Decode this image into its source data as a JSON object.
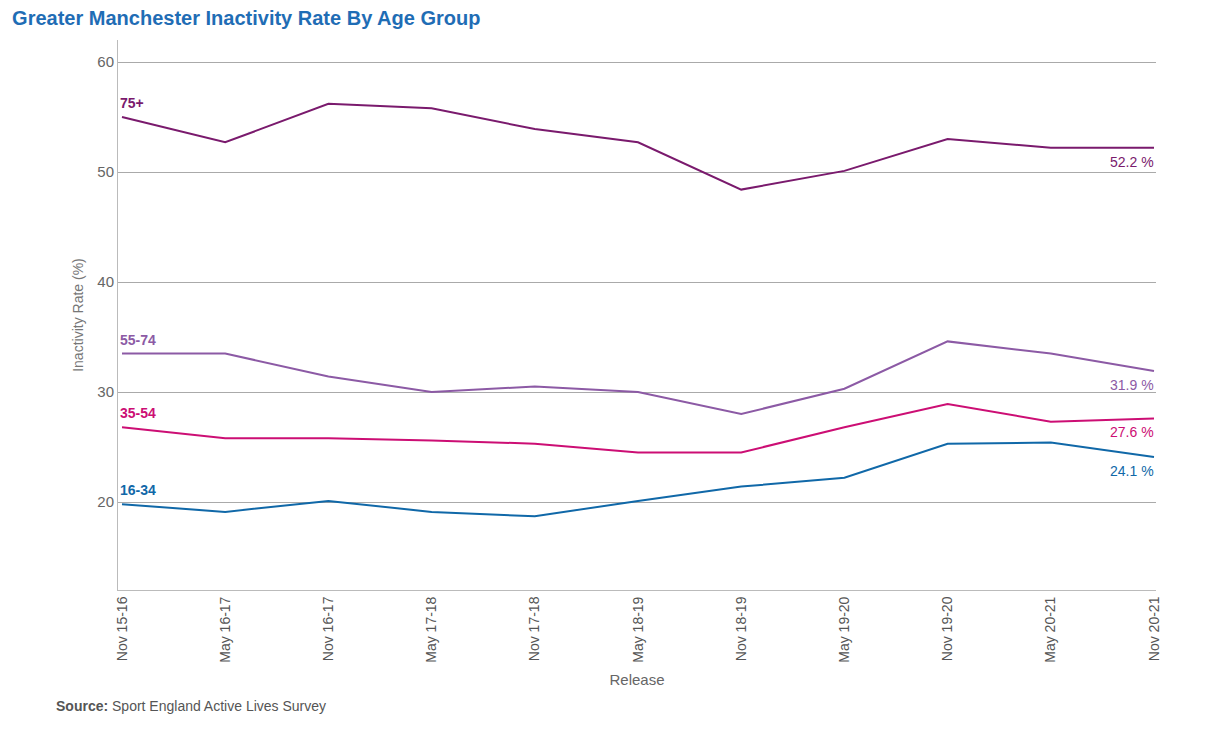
{
  "chart_data": {
    "type": "line",
    "title": "Greater Manchester Inactivity Rate By Age Group",
    "x_label": "Release",
    "y_label": "Inactivity Rate (%)",
    "source_label": "Source:",
    "source": "Sport England Active Lives Survey",
    "categories": [
      "Nov 15-16",
      "May 16-17",
      "Nov 16-17",
      "May 17-18",
      "Nov 17-18",
      "May 18-19",
      "Nov 18-19",
      "May 19-20",
      "Nov 19-20",
      "May 20-21",
      "Nov 20-21"
    ],
    "series": [
      {
        "name": "75+",
        "color": "#7a1a6d",
        "values": [
          55.0,
          52.7,
          56.2,
          55.8,
          53.9,
          52.7,
          48.4,
          50.1,
          53.0,
          52.2,
          52.2
        ],
        "value_labels": [
          null,
          null,
          null,
          null,
          null,
          null,
          null,
          null,
          null,
          null,
          "52.2 %"
        ]
      },
      {
        "name": "55-74",
        "color": "#8c5aa5",
        "values": [
          33.5,
          33.5,
          31.4,
          30.0,
          30.5,
          30.0,
          28.0,
          30.3,
          34.6,
          33.5,
          31.9
        ],
        "value_labels": [
          null,
          null,
          null,
          null,
          null,
          null,
          null,
          null,
          null,
          null,
          "31.9 %"
        ]
      },
      {
        "name": "35-54",
        "color": "#cc0e74",
        "values": [
          26.8,
          25.8,
          25.8,
          25.6,
          25.3,
          24.5,
          24.5,
          26.8,
          28.9,
          27.3,
          27.6
        ],
        "value_labels": [
          null,
          null,
          null,
          null,
          null,
          null,
          null,
          null,
          null,
          null,
          "27.6 %"
        ]
      },
      {
        "name": "16-34",
        "color": "#1068a8",
        "values": [
          19.8,
          19.1,
          20.1,
          19.1,
          18.7,
          20.1,
          21.4,
          22.2,
          25.3,
          25.4,
          24.1
        ],
        "value_labels": [
          null,
          null,
          null,
          null,
          null,
          null,
          null,
          null,
          null,
          null,
          "24.1 %"
        ]
      }
    ],
    "ylim": [
      12,
      62
    ],
    "yticks": [
      20,
      30,
      40,
      50,
      60
    ],
    "grid": true
  }
}
